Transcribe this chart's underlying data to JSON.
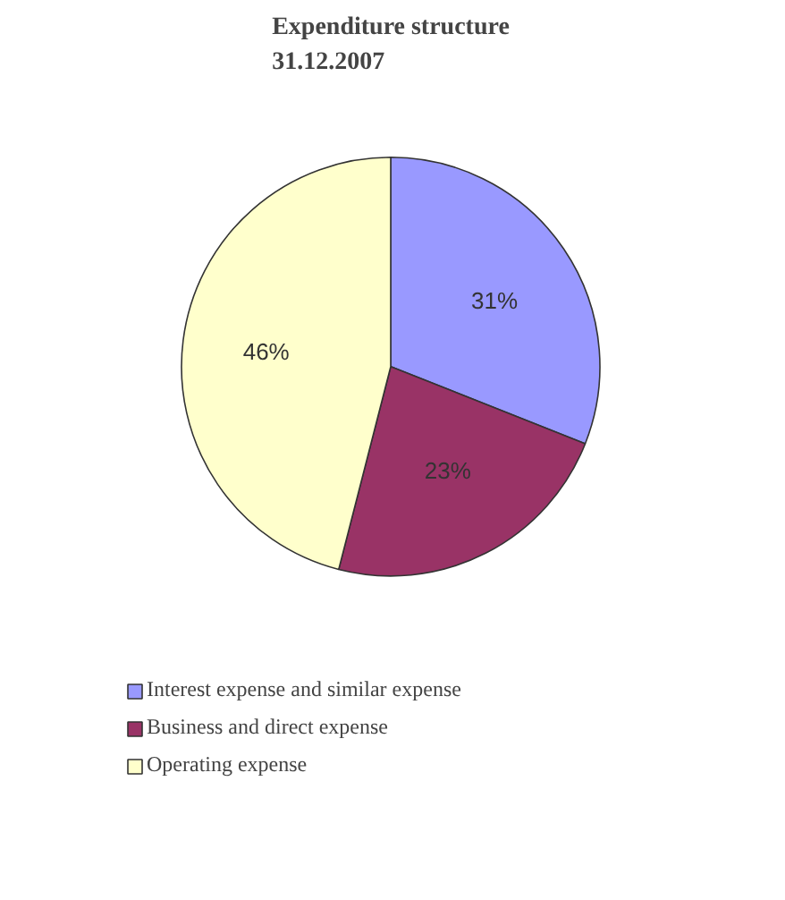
{
  "chart_data": {
    "type": "pie",
    "title": "Expenditure structure\n31.12.2007",
    "categories": [
      "Interest expense and similar expense",
      "Business and direct expense",
      "Operating expense"
    ],
    "values": [
      31,
      23,
      46
    ],
    "colors": [
      "#9999ff",
      "#993366",
      "#ffffcc"
    ],
    "value_labels": [
      "31%",
      "23%",
      "46%"
    ],
    "legend": "bottom"
  }
}
